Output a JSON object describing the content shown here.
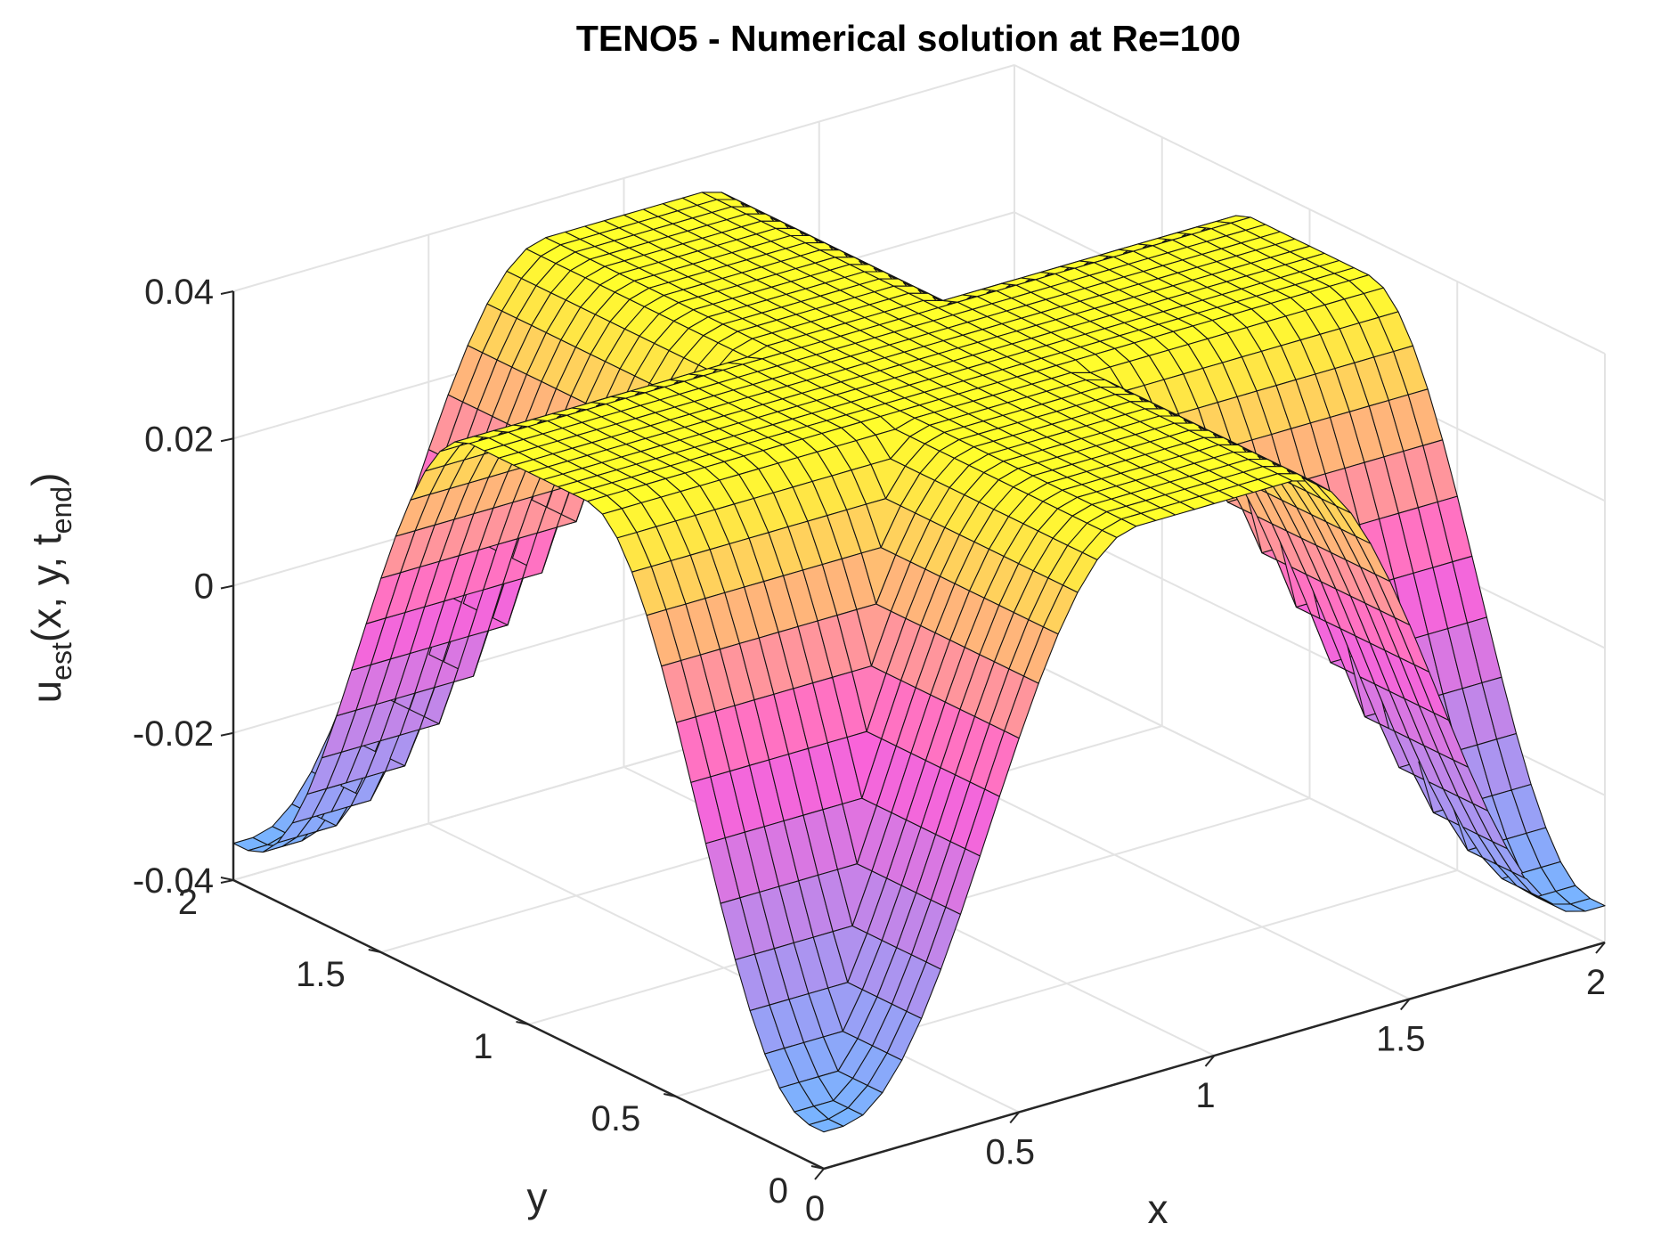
{
  "chart_data": {
    "type": "surface",
    "title": "TENO5 - Numerical solution at Re=100",
    "xlabel": "x",
    "ylabel": "y",
    "zlabel": {
      "base": "u",
      "sub": "est",
      "mid": "(x, y, t",
      "sub2": "end",
      "end": ")"
    },
    "xlim": [
      0,
      2
    ],
    "ylim": [
      0,
      2
    ],
    "zlim": [
      -0.04,
      0.04
    ],
    "x_ticks": [
      "0",
      "0.5",
      "1",
      "1.5",
      "2"
    ],
    "y_ticks": [
      "0",
      "0.5",
      "1",
      "1.5",
      "2"
    ],
    "z_ticks": [
      "-0.04",
      "-0.02",
      "0",
      "0.02",
      "0.04"
    ],
    "x_tick_values": [
      0,
      0.5,
      1,
      1.5,
      2
    ],
    "y_tick_values": [
      0,
      0.5,
      1,
      1.5,
      2
    ],
    "z_tick_values": [
      -0.04,
      -0.02,
      0,
      0.02,
      0.04
    ],
    "grid": true,
    "colormap": "spring-cool (blue → magenta → yellow)",
    "colors": {
      "low": "#78b4ff",
      "mid": "#ff5fd7",
      "high": "#ffff2a",
      "mesh_edge": "#141414",
      "grid": "#e3e3e3",
      "axis": "#262626"
    },
    "surface": {
      "description_fn": "u = A * (-1 + 2*m) where m is a plateau of a triangular ridge along x and along y",
      "grid_n": 41,
      "amplitude": 0.035,
      "ridge_center": 1.0,
      "ridge_plateau_halfwidth": 0.2,
      "ridge_zero_halfwidth": 0.95
    }
  }
}
